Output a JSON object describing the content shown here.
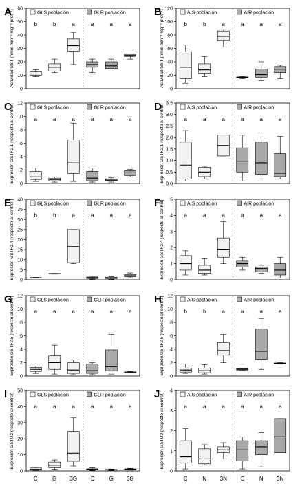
{
  "chart_data": [
    {
      "panel": "A",
      "type": "box",
      "ylabel": "Actividad GST (nmol min⁻¹ mg⁻¹ prot⁻¹)",
      "ylim": [
        0,
        60
      ],
      "yticks": [
        0,
        10,
        20,
        30,
        40,
        50,
        60
      ],
      "categories": [
        "C",
        "G",
        "3G",
        "C",
        "G",
        "3G"
      ],
      "legend": [
        "GLS población",
        "GLR población"
      ],
      "letters": [
        "b",
        "b",
        "a",
        "a",
        "a",
        "a"
      ],
      "groups": [
        1,
        1,
        1,
        2,
        2,
        2
      ],
      "boxes": [
        {
          "min": 9,
          "q1": 10,
          "median": 11,
          "q3": 12.5,
          "max": 14
        },
        {
          "min": 12,
          "q1": 13,
          "median": 16,
          "q3": 18.5,
          "max": 22
        },
        {
          "min": 18,
          "q1": 28,
          "median": 32,
          "q3": 37,
          "max": 42
        },
        {
          "min": 12,
          "q1": 16,
          "median": 18,
          "q3": 20,
          "max": 22
        },
        {
          "min": 13,
          "q1": 15,
          "median": 17,
          "q3": 20,
          "max": 22
        },
        {
          "min": 22,
          "q1": 24,
          "median": 25,
          "q3": 26,
          "max": 26
        }
      ]
    },
    {
      "panel": "B",
      "type": "box",
      "ylabel": "Actividad GST (nmol min⁻¹ mg⁻¹ prot⁻¹)",
      "ylim": [
        0,
        120
      ],
      "yticks": [
        0,
        20,
        40,
        60,
        80,
        100,
        120
      ],
      "categories": [
        "C",
        "N",
        "3N",
        "C",
        "N",
        "3N"
      ],
      "legend": [
        "AIS población",
        "AIR población"
      ],
      "letters": [
        "b",
        "b",
        "a",
        "a",
        "a",
        "a"
      ],
      "groups": [
        1,
        1,
        1,
        2,
        2,
        2
      ],
      "boxes": [
        {
          "min": 8,
          "q1": 15,
          "median": 32,
          "q3": 55,
          "max": 65
        },
        {
          "min": 18,
          "q1": 23,
          "median": 28,
          "q3": 37,
          "max": 48
        },
        {
          "min": 62,
          "q1": 72,
          "median": 78,
          "q3": 86,
          "max": 88
        },
        {
          "min": 15,
          "q1": 16,
          "median": 17,
          "q3": 17.5,
          "max": 18
        },
        {
          "min": 12,
          "q1": 17,
          "median": 21,
          "q3": 29,
          "max": 40
        },
        {
          "min": 15,
          "q1": 24,
          "median": 29,
          "q3": 33,
          "max": 35
        }
      ]
    },
    {
      "panel": "C",
      "type": "box",
      "ylabel": "Expresión GSTF2.1 (respecto al control)",
      "ylim": [
        0,
        12
      ],
      "yticks": [
        0,
        2,
        4,
        6,
        8,
        10,
        12
      ],
      "categories": [
        "C",
        "G",
        "3G",
        "C",
        "G",
        "3G"
      ],
      "legend": [
        "GLS población",
        "GLR población"
      ],
      "letters": [
        "a",
        "a",
        "a",
        "a",
        "a",
        "a"
      ],
      "groups": [
        1,
        1,
        1,
        2,
        2,
        2
      ],
      "boxes": [
        {
          "min": 0.3,
          "q1": 0.6,
          "median": 1.0,
          "q3": 1.8,
          "max": 2.3
        },
        {
          "min": 0.2,
          "q1": 0.4,
          "median": 0.6,
          "q3": 0.8,
          "max": 1.0
        },
        {
          "min": 0.3,
          "q1": 1.5,
          "median": 3.2,
          "q3": 6.5,
          "max": 9.0
        },
        {
          "min": 0.2,
          "q1": 0.4,
          "median": 0.8,
          "q3": 1.8,
          "max": 2.3
        },
        {
          "min": 0.2,
          "q1": 0.4,
          "median": 0.5,
          "q3": 0.7,
          "max": 0.9
        },
        {
          "min": 1.0,
          "q1": 1.2,
          "median": 1.6,
          "q3": 1.9,
          "max": 2.1
        }
      ]
    },
    {
      "panel": "D",
      "type": "box",
      "ylabel": "Expresión GSTF2.1 (respecto al control)",
      "ylim": [
        0,
        3.5
      ],
      "yticks": [
        0,
        0.5,
        1.0,
        1.5,
        2.0,
        2.5,
        3.0,
        3.5
      ],
      "categories": [
        "C",
        "N",
        "3N",
        "C",
        "N",
        "3N"
      ],
      "legend": [
        "AIS población",
        "AIR población"
      ],
      "letters": [
        "a",
        "a",
        "a",
        "a",
        "a",
        "a"
      ],
      "groups": [
        1,
        1,
        1,
        2,
        2,
        2
      ],
      "boxes": [
        {
          "min": 0.1,
          "q1": 0.2,
          "median": 0.8,
          "q3": 1.8,
          "max": 2.3
        },
        {
          "min": 0.2,
          "q1": 0.3,
          "median": 0.5,
          "q3": 0.7,
          "max": 0.75
        },
        {
          "min": 1.2,
          "q1": 1.2,
          "median": 1.65,
          "q3": 2.1,
          "max": 2.1
        },
        {
          "min": 0.1,
          "q1": 0.5,
          "median": 0.95,
          "q3": 1.55,
          "max": 2.1
        },
        {
          "min": 0.1,
          "q1": 0.4,
          "median": 0.9,
          "q3": 1.8,
          "max": 2.2
        },
        {
          "min": 0.2,
          "q1": 0.3,
          "median": 0.45,
          "q3": 1.3,
          "max": 2.05
        }
      ]
    },
    {
      "panel": "E",
      "type": "box",
      "ylabel": "Expresión GSTF2.4 (respecto al control )",
      "ylim": [
        0,
        40
      ],
      "yticks": [
        0,
        5,
        10,
        15,
        20,
        25,
        30,
        35,
        40
      ],
      "categories": [
        "C",
        "G",
        "3G",
        "C",
        "G",
        "3G"
      ],
      "legend": [
        "GLS población",
        "GLR población"
      ],
      "letters": [
        "b",
        "b",
        "a",
        "a",
        "a",
        "a"
      ],
      "groups": [
        1,
        1,
        1,
        2,
        2,
        2
      ],
      "boxes": [
        {
          "min": 0.8,
          "q1": 0.9,
          "median": 1.0,
          "q3": 1.1,
          "max": 1.2
        },
        {
          "min": 2.8,
          "q1": 2.9,
          "median": 3.0,
          "q3": 3.1,
          "max": 3.2
        },
        {
          "min": 8.0,
          "q1": 8.5,
          "median": 16.5,
          "q3": 25.0,
          "max": 25.0
        },
        {
          "min": 0.3,
          "q1": 0.6,
          "median": 1.0,
          "q3": 1.4,
          "max": 1.8
        },
        {
          "min": 0.3,
          "q1": 0.6,
          "median": 0.9,
          "q3": 1.2,
          "max": 1.5
        },
        {
          "min": 1.0,
          "q1": 1.5,
          "median": 2.0,
          "q3": 2.7,
          "max": 3.4
        }
      ]
    },
    {
      "panel": "F",
      "type": "box",
      "ylabel": "Expresión GSTF2.4 (respecto al control)",
      "ylim": [
        0,
        5
      ],
      "yticks": [
        0,
        1,
        2,
        3,
        4,
        5
      ],
      "categories": [
        "C",
        "N",
        "3N",
        "C",
        "N",
        "3N"
      ],
      "legend": [
        "AIS población",
        "AIR población"
      ],
      "letters": [
        "a",
        "a",
        "a",
        "a",
        "a",
        "a"
      ],
      "groups": [
        1,
        1,
        1,
        2,
        2,
        2
      ],
      "boxes": [
        {
          "min": 0.3,
          "q1": 0.6,
          "median": 1.0,
          "q3": 1.5,
          "max": 1.8
        },
        {
          "min": 0.3,
          "q1": 0.4,
          "median": 0.6,
          "q3": 0.9,
          "max": 1.3
        },
        {
          "min": 1.0,
          "q1": 1.4,
          "median": 1.9,
          "q3": 2.6,
          "max": 3.6
        },
        {
          "min": 0.6,
          "q1": 0.8,
          "median": 1.0,
          "q3": 1.2,
          "max": 1.4
        },
        {
          "min": 0.4,
          "q1": 0.5,
          "median": 0.7,
          "q3": 0.8,
          "max": 0.9
        },
        {
          "min": 0.1,
          "q1": 0.3,
          "median": 0.6,
          "q3": 1.0,
          "max": 1.4
        }
      ]
    },
    {
      "panel": "G",
      "type": "box",
      "ylabel": "Expresión GSTF2.5 (respecto al control)",
      "ylim": [
        0,
        12
      ],
      "yticks": [
        0,
        2,
        4,
        6,
        8,
        10,
        12
      ],
      "categories": [
        "C",
        "G",
        "3G",
        "C",
        "G",
        "3G"
      ],
      "legend": [
        "GLS población",
        "GLR población"
      ],
      "letters": [
        "a",
        "a",
        "a",
        "a",
        "a",
        "a"
      ],
      "groups": [
        1,
        1,
        1,
        2,
        2,
        2
      ],
      "boxes": [
        {
          "min": 0.4,
          "q1": 0.7,
          "median": 1.0,
          "q3": 1.3,
          "max": 1.5
        },
        {
          "min": 0.3,
          "q1": 1.0,
          "median": 2.0,
          "q3": 3.0,
          "max": 4.6
        },
        {
          "min": 0.2,
          "q1": 0.4,
          "median": 0.9,
          "q3": 2.0,
          "max": 2.4
        },
        {
          "min": 0.2,
          "q1": 0.4,
          "median": 0.8,
          "q3": 1.8,
          "max": 2.0
        },
        {
          "min": 0.3,
          "q1": 0.8,
          "median": 1.4,
          "q3": 3.9,
          "max": 6.2
        },
        {
          "min": 0.5,
          "q1": 0.5,
          "median": 0.6,
          "q3": 0.6,
          "max": 0.7
        }
      ]
    },
    {
      "panel": "H",
      "type": "box",
      "ylabel": "Expresión GSTF2.5 (respecto al control)",
      "ylim": [
        0,
        12
      ],
      "yticks": [
        0,
        2,
        4,
        6,
        8,
        10,
        12
      ],
      "categories": [
        "C",
        "N",
        "3N",
        "C",
        "N",
        "3N"
      ],
      "legend": [
        "AIS población",
        "AIR población"
      ],
      "letters": [
        "b",
        "b",
        "a",
        "a",
        "a",
        "a"
      ],
      "groups": [
        1,
        1,
        1,
        2,
        2,
        2
      ],
      "boxes": [
        {
          "min": 0.4,
          "q1": 0.6,
          "median": 0.9,
          "q3": 1.2,
          "max": 1.8
        },
        {
          "min": 0.3,
          "q1": 0.5,
          "median": 0.8,
          "q3": 1.2,
          "max": 1.7
        },
        {
          "min": 2.0,
          "q1": 3.1,
          "median": 3.8,
          "q3": 5.0,
          "max": 6.2
        },
        {
          "min": 0.8,
          "q1": 0.9,
          "median": 1.0,
          "q3": 1.1,
          "max": 1.2
        },
        {
          "min": 1.0,
          "q1": 2.5,
          "median": 3.7,
          "q3": 7.0,
          "max": 8.6
        },
        {
          "min": 1.8,
          "q1": 1.85,
          "median": 1.9,
          "q3": 1.95,
          "max": 2.0
        }
      ]
    },
    {
      "panel": "I",
      "type": "box",
      "ylabel": "Expresión GSTU2 (respecto al control)",
      "ylim": [
        0,
        50
      ],
      "yticks": [
        0,
        10,
        20,
        30,
        40,
        50
      ],
      "categories": [
        "C",
        "G",
        "3G",
        "C",
        "G",
        "3G"
      ],
      "legend": [
        "GLS población",
        "GLR población"
      ],
      "letters": [
        "a",
        "a",
        "a",
        "a",
        "a",
        "a"
      ],
      "groups": [
        1,
        1,
        1,
        2,
        2,
        2
      ],
      "boxes": [
        {
          "min": 0.2,
          "q1": 0.5,
          "median": 1.0,
          "q3": 1.8,
          "max": 2.3
        },
        {
          "min": 1.0,
          "q1": 2.0,
          "median": 3.5,
          "q3": 5.5,
          "max": 6.8
        },
        {
          "min": 3.0,
          "q1": 6.0,
          "median": 11.0,
          "q3": 24.5,
          "max": 33.0
        },
        {
          "min": 0.3,
          "q1": 0.6,
          "median": 1.0,
          "q3": 1.3,
          "max": 2.0
        },
        {
          "min": 0.3,
          "q1": 0.5,
          "median": 0.7,
          "q3": 0.9,
          "max": 1.2
        },
        {
          "min": 0.5,
          "q1": 0.8,
          "median": 1.0,
          "q3": 1.3,
          "max": 1.6
        }
      ]
    },
    {
      "panel": "J",
      "type": "box",
      "ylabel": "Expresión GSTU2 (respecto al control)",
      "ylim": [
        0,
        4
      ],
      "yticks": [
        0,
        1,
        2,
        3,
        4
      ],
      "categories": [
        "C",
        "N",
        "3N",
        "C",
        "N",
        "3N"
      ],
      "legend": [
        "AIS población",
        "AIR población"
      ],
      "letters": [
        "a",
        "a",
        "a",
        "a",
        "a",
        "a"
      ],
      "groups": [
        1,
        1,
        1,
        2,
        2,
        2
      ],
      "boxes": [
        {
          "min": 0.1,
          "q1": 0.4,
          "median": 0.7,
          "q3": 1.5,
          "max": 2.1
        },
        {
          "min": 0.3,
          "q1": 0.35,
          "median": 0.6,
          "q3": 1.1,
          "max": 1.3
        },
        {
          "min": 0.6,
          "q1": 0.9,
          "median": 1.05,
          "q3": 1.2,
          "max": 1.4
        },
        {
          "min": 0.1,
          "q1": 0.5,
          "median": 1.05,
          "q3": 1.5,
          "max": 1.7
        },
        {
          "min": 0.2,
          "q1": 0.8,
          "median": 1.2,
          "q3": 1.5,
          "max": 1.9
        },
        {
          "min": 0.9,
          "q1": 0.9,
          "median": 1.7,
          "q3": 2.6,
          "max": 2.6
        }
      ]
    }
  ]
}
